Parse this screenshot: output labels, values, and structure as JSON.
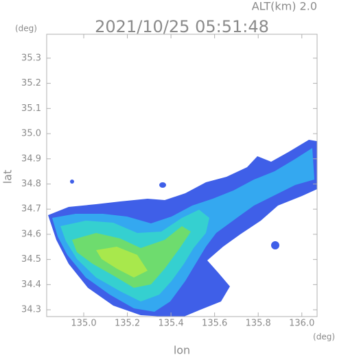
{
  "chart_data": {
    "type": "radar-map",
    "title": "2021/10/25 05:51:48",
    "altitude_label": "ALT(km) 2.0",
    "x_label": "lon",
    "x_unit": "(deg)",
    "y_label": "lat",
    "y_unit": "(deg)",
    "xlim": [
      134.83,
      136.07
    ],
    "ylim": [
      34.273,
      35.395
    ],
    "xticks": [
      {
        "value": 135,
        "label": "135.0"
      },
      135.2,
      135.4,
      135.6,
      135.8,
      {
        "value": 136,
        "label": "136.0"
      }
    ],
    "yticks": [
      34.3,
      34.4,
      34.5,
      34.6,
      34.7,
      34.8,
      34.9,
      {
        "value": 35,
        "label": "35.0"
      },
      35.1,
      35.2,
      35.3
    ]
  }
}
